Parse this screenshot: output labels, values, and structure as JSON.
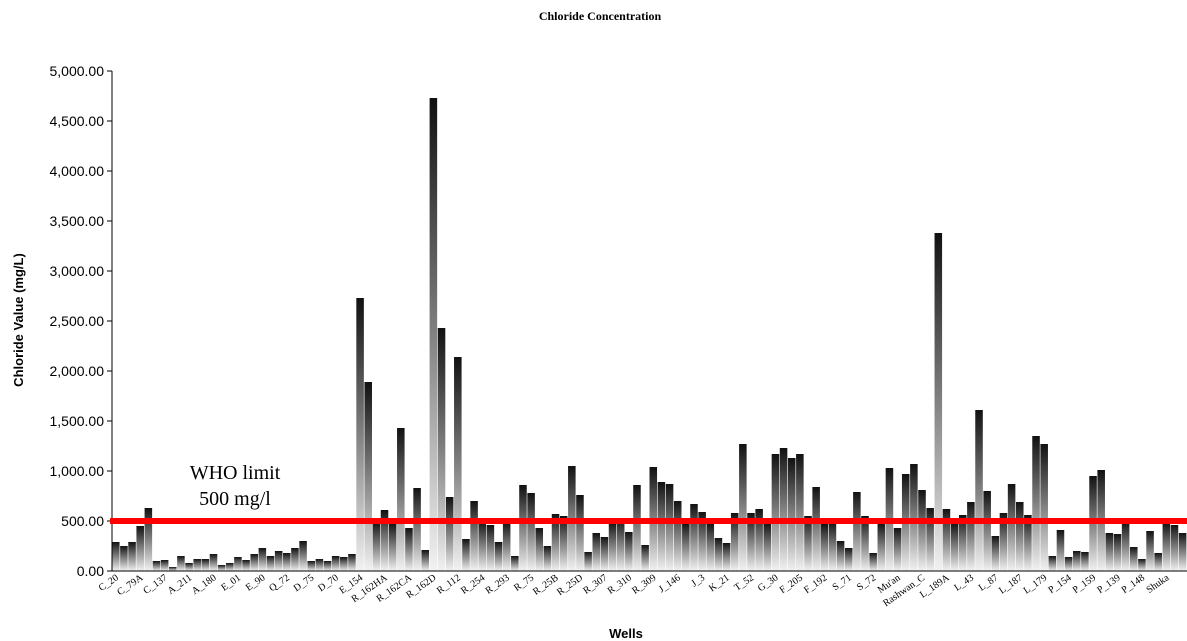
{
  "chart_data": {
    "type": "bar",
    "title": "Chloride Concentration",
    "xlabel": "Wells",
    "ylabel": "Chloride Value (mg/L)",
    "ylim": [
      0,
      5000
    ],
    "yticks": [
      "0.00",
      "500.00",
      "1,000.00",
      "1,500.00",
      "2,000.00",
      "2,500.00",
      "3,000.00",
      "3,500.00",
      "4,000.00",
      "4,500.00",
      "5,000.00"
    ],
    "grid": false,
    "legend": "none",
    "tick_labels": [
      "C_20",
      "C_79A",
      "C_137",
      "A_211",
      "A_180",
      "E_01",
      "E_90",
      "Q_72",
      "D_75",
      "D_70",
      "E_154",
      "R_162HA",
      "R_162CA",
      "R_162D",
      "R_112",
      "R_254",
      "R_293",
      "R_75",
      "R_25B",
      "R_25D",
      "R_307",
      "R_310",
      "R_309",
      "J_146",
      "J_3",
      "K_21",
      "T_52",
      "G_30",
      "F_205",
      "F_192",
      "S_71",
      "S_72",
      "Mu'an",
      "Rashwan_C",
      "L_189A",
      "L_43",
      "L_87",
      "L_187",
      "L_179",
      "P_154",
      "P_159",
      "P_139",
      "P_148",
      "Shuka"
    ],
    "values": [
      290,
      250,
      290,
      450,
      630,
      100,
      110,
      40,
      150,
      80,
      120,
      120,
      170,
      60,
      80,
      140,
      110,
      170,
      230,
      150,
      200,
      180,
      230,
      300,
      100,
      120,
      100,
      150,
      140,
      170,
      2730,
      1890,
      490,
      610,
      480,
      1430,
      430,
      830,
      210,
      4730,
      2430,
      740,
      2140,
      320,
      700,
      500,
      460,
      290,
      490,
      150,
      860,
      780,
      430,
      250,
      570,
      550,
      1050,
      760,
      190,
      380,
      340,
      490,
      530,
      390,
      860,
      260,
      1040,
      890,
      870,
      700,
      480,
      670,
      590,
      480,
      330,
      280,
      580,
      1270,
      580,
      620,
      480,
      1170,
      1230,
      1130,
      1170,
      550,
      840,
      470,
      490,
      300,
      230,
      790,
      550,
      180,
      480,
      1030,
      430,
      970,
      1070,
      810,
      630,
      3380,
      620,
      480,
      560,
      690,
      1610,
      800,
      350,
      580,
      870,
      690,
      560,
      1350,
      1270,
      150,
      410,
      140,
      200,
      190,
      950,
      1010,
      380,
      370,
      490,
      240,
      120,
      400,
      180,
      480,
      460,
      380
    ],
    "reference_line": {
      "value": 500,
      "color": "#ff0000"
    },
    "annotation": [
      "WHO limit",
      "500 mg/l"
    ]
  }
}
